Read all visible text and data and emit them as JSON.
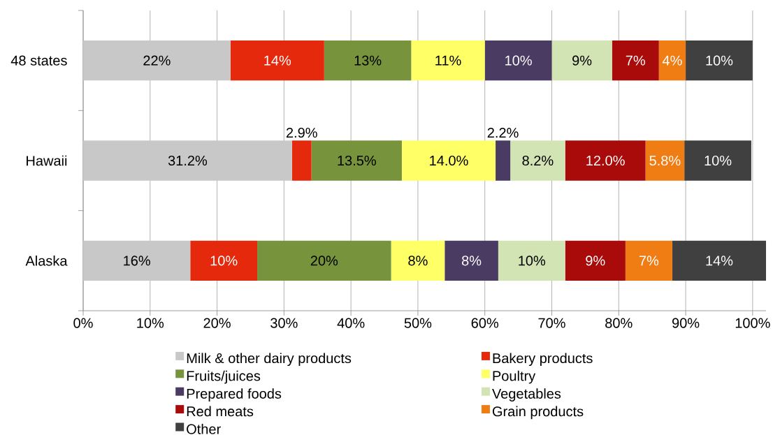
{
  "chart_data": {
    "type": "bar",
    "orientation": "horizontal",
    "stacked": true,
    "categories": [
      "48 states",
      "Hawaii",
      "Alaska"
    ],
    "series": [
      {
        "name": "Milk & other dairy products",
        "color": "#c8c8c8",
        "values": [
          22,
          31.2,
          16
        ],
        "value_labels": [
          "22%",
          "31.2%",
          "16%"
        ]
      },
      {
        "name": "Bakery products",
        "color": "#e5290d",
        "values": [
          14,
          2.9,
          10
        ],
        "value_labels": [
          "14%",
          "2.9%",
          "10%"
        ]
      },
      {
        "name": "Fruits/juices",
        "color": "#77933c",
        "values": [
          13,
          13.5,
          20
        ],
        "value_labels": [
          "13%",
          "13.5%",
          "20%"
        ]
      },
      {
        "name": "Poultry",
        "color": "#ffff66",
        "values": [
          11,
          14.0,
          8
        ],
        "value_labels": [
          "11%",
          "14.0%",
          "8%"
        ]
      },
      {
        "name": "Prepared foods",
        "color": "#4a3b63",
        "values": [
          10,
          2.2,
          8
        ],
        "value_labels": [
          "10%",
          "2.2%",
          "8%"
        ]
      },
      {
        "name": "Vegetables",
        "color": "#d2e4b4",
        "values": [
          9,
          8.2,
          10
        ],
        "value_labels": [
          "9%",
          "8.2%",
          "10%"
        ]
      },
      {
        "name": "Red meats",
        "color": "#a90a0a",
        "values": [
          7,
          12.0,
          9
        ],
        "value_labels": [
          "7%",
          "12.0%",
          "9%"
        ]
      },
      {
        "name": "Grain products",
        "color": "#f07d14",
        "values": [
          4,
          5.8,
          7
        ],
        "value_labels": [
          "4%",
          "5.8%",
          "7%"
        ]
      },
      {
        "name": "Other",
        "color": "#404040",
        "values": [
          10,
          10,
          14
        ],
        "value_labels": [
          "10%",
          "10%",
          "14%"
        ]
      }
    ],
    "xlim": [
      0,
      102
    ],
    "xticks": [
      {
        "value": 0,
        "label": "0%"
      },
      {
        "value": 10,
        "label": "10%"
      },
      {
        "value": 20,
        "label": "20%"
      },
      {
        "value": 30,
        "label": "30%"
      },
      {
        "value": 40,
        "label": "40%"
      },
      {
        "value": 50,
        "label": "50%"
      },
      {
        "value": 60,
        "label": "60%"
      },
      {
        "value": 70,
        "label": "70%"
      },
      {
        "value": 80,
        "label": "80%"
      },
      {
        "value": 90,
        "label": "90%"
      },
      {
        "value": 100,
        "label": "100%"
      }
    ],
    "grid": "x",
    "legend": "bottom"
  }
}
